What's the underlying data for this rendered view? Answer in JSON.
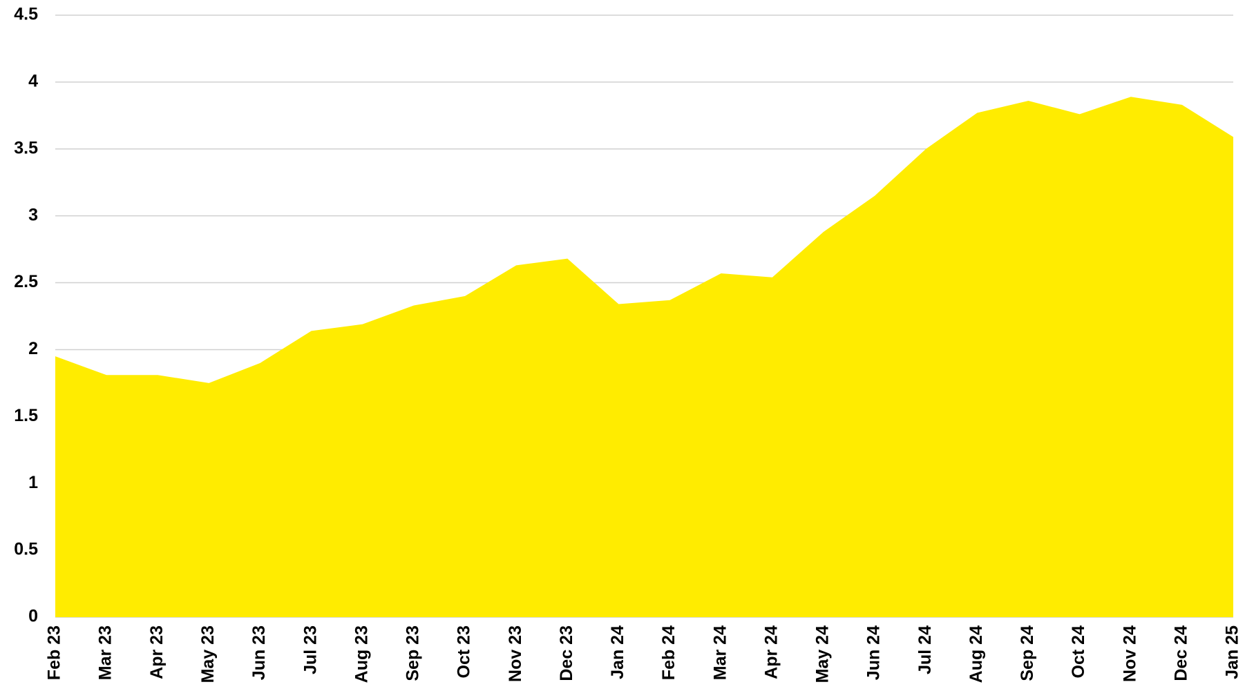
{
  "chart_data": {
    "type": "area",
    "categories": [
      "Feb 23",
      "Mar 23",
      "Apr 23",
      "May 23",
      "Jun 23",
      "Jul 23",
      "Aug 23",
      "Sep 23",
      "Oct 23",
      "Nov 23",
      "Dec 23",
      "Jan 24",
      "Feb 24",
      "Mar 24",
      "Apr 24",
      "May 24",
      "Jun 24",
      "Jul 24",
      "Aug 24",
      "Sep 24",
      "Oct 24",
      "Nov 24",
      "Dec 24",
      "Jan 25"
    ],
    "values": [
      1.95,
      1.81,
      1.81,
      1.75,
      1.9,
      2.14,
      2.19,
      2.33,
      2.4,
      2.63,
      2.68,
      2.34,
      2.37,
      2.57,
      2.54,
      2.88,
      3.15,
      3.5,
      3.77,
      3.86,
      3.76,
      3.89,
      3.83,
      3.59
    ],
    "color": "#ffec00",
    "ylim": [
      0,
      4.5
    ],
    "yticks": [
      0,
      0.5,
      1,
      1.5,
      2,
      2.5,
      3,
      3.5,
      4,
      4.5
    ],
    "grid": true
  }
}
